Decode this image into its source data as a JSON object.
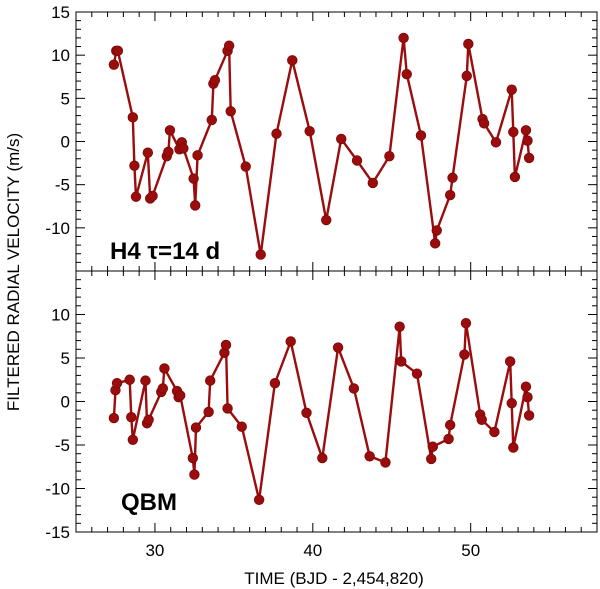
{
  "chart_data": [
    {
      "type": "line",
      "panel": "top",
      "label": "H4 τ=14 d",
      "ylabel": "FILTERED RADIAL VELOCITY (m/s)",
      "xlabel": "TIME (BJD - 2,454,820)",
      "xlim": [
        25,
        58
      ],
      "ylim": [
        -15,
        15
      ],
      "yticks": [
        15,
        10,
        5,
        0,
        -5,
        -10
      ],
      "xticks": [
        30,
        40,
        50
      ],
      "color": "#9b0c0c",
      "x": [
        27.4,
        27.55,
        27.65,
        28.6,
        28.7,
        28.8,
        29.55,
        29.7,
        29.85,
        30.75,
        30.85,
        30.95,
        31.55,
        31.7,
        31.8,
        32.45,
        32.55,
        32.7,
        33.6,
        33.7,
        33.8,
        34.6,
        34.7,
        34.8,
        35.75,
        36.7,
        37.7,
        38.7,
        39.8,
        40.85,
        41.8,
        42.8,
        43.8,
        44.85,
        45.75,
        45.95,
        46.85,
        47.75,
        47.85,
        48.7,
        48.85,
        49.75,
        49.85,
        50.75,
        50.85,
        51.6,
        52.6,
        52.7,
        52.8,
        53.5,
        53.6,
        53.7
      ],
      "y": [
        8.9,
        10.5,
        10.5,
        2.8,
        -2.8,
        -6.4,
        -1.3,
        -6.6,
        -6.3,
        -1.7,
        -1.2,
        1.3,
        -0.9,
        -0.1,
        -0.8,
        -4.3,
        -7.4,
        -1.6,
        2.5,
        6.7,
        7.1,
        10.5,
        11.1,
        3.5,
        -2.9,
        -13.1,
        0.9,
        9.4,
        1.2,
        -9.1,
        0.3,
        -2.2,
        -4.8,
        -1.7,
        12.0,
        7.8,
        0.7,
        -11.8,
        -10.3,
        -6.2,
        -4.2,
        7.6,
        11.3,
        2.6,
        2.1,
        -0.1,
        6.0,
        1.1,
        -4.1,
        1.3,
        0.1,
        -1.9
      ]
    },
    {
      "type": "line",
      "panel": "bottom",
      "label": "QBM",
      "xlim": [
        25,
        58
      ],
      "ylim": [
        -15,
        15
      ],
      "yticks": [
        10,
        5,
        0,
        -5,
        -10,
        -15
      ],
      "xticks": [
        30,
        40,
        50
      ],
      "color": "#9b0c0c",
      "x": [
        27.4,
        27.5,
        27.6,
        28.4,
        28.5,
        28.6,
        29.4,
        29.5,
        29.6,
        30.4,
        30.5,
        30.6,
        31.4,
        31.5,
        31.6,
        32.4,
        32.5,
        32.6,
        33.4,
        33.5,
        34.4,
        34.5,
        34.6,
        35.5,
        36.6,
        37.6,
        38.6,
        39.6,
        40.6,
        41.6,
        42.6,
        43.6,
        44.6,
        45.5,
        45.6,
        46.6,
        47.5,
        47.6,
        48.6,
        48.7,
        49.6,
        49.7,
        50.6,
        50.7,
        51.5,
        52.5,
        52.6,
        52.7,
        53.5,
        53.6,
        53.7
      ],
      "y": [
        -1.9,
        1.3,
        2.1,
        2.5,
        -1.8,
        -4.4,
        2.4,
        -2.5,
        -2.1,
        1.1,
        1.5,
        3.8,
        1.2,
        0.5,
        0.7,
        -6.5,
        -8.4,
        -3.0,
        -1.2,
        2.4,
        5.6,
        6.5,
        -0.8,
        -2.9,
        -11.3,
        2.1,
        6.9,
        -1.3,
        -6.5,
        6.2,
        1.5,
        -6.3,
        -7.0,
        8.6,
        4.6,
        3.2,
        -6.6,
        -5.2,
        -4.3,
        -2.7,
        5.4,
        9.0,
        -1.5,
        -2.1,
        -3.5,
        4.6,
        -0.2,
        -5.3,
        1.7,
        0.5,
        -1.6
      ]
    }
  ]
}
